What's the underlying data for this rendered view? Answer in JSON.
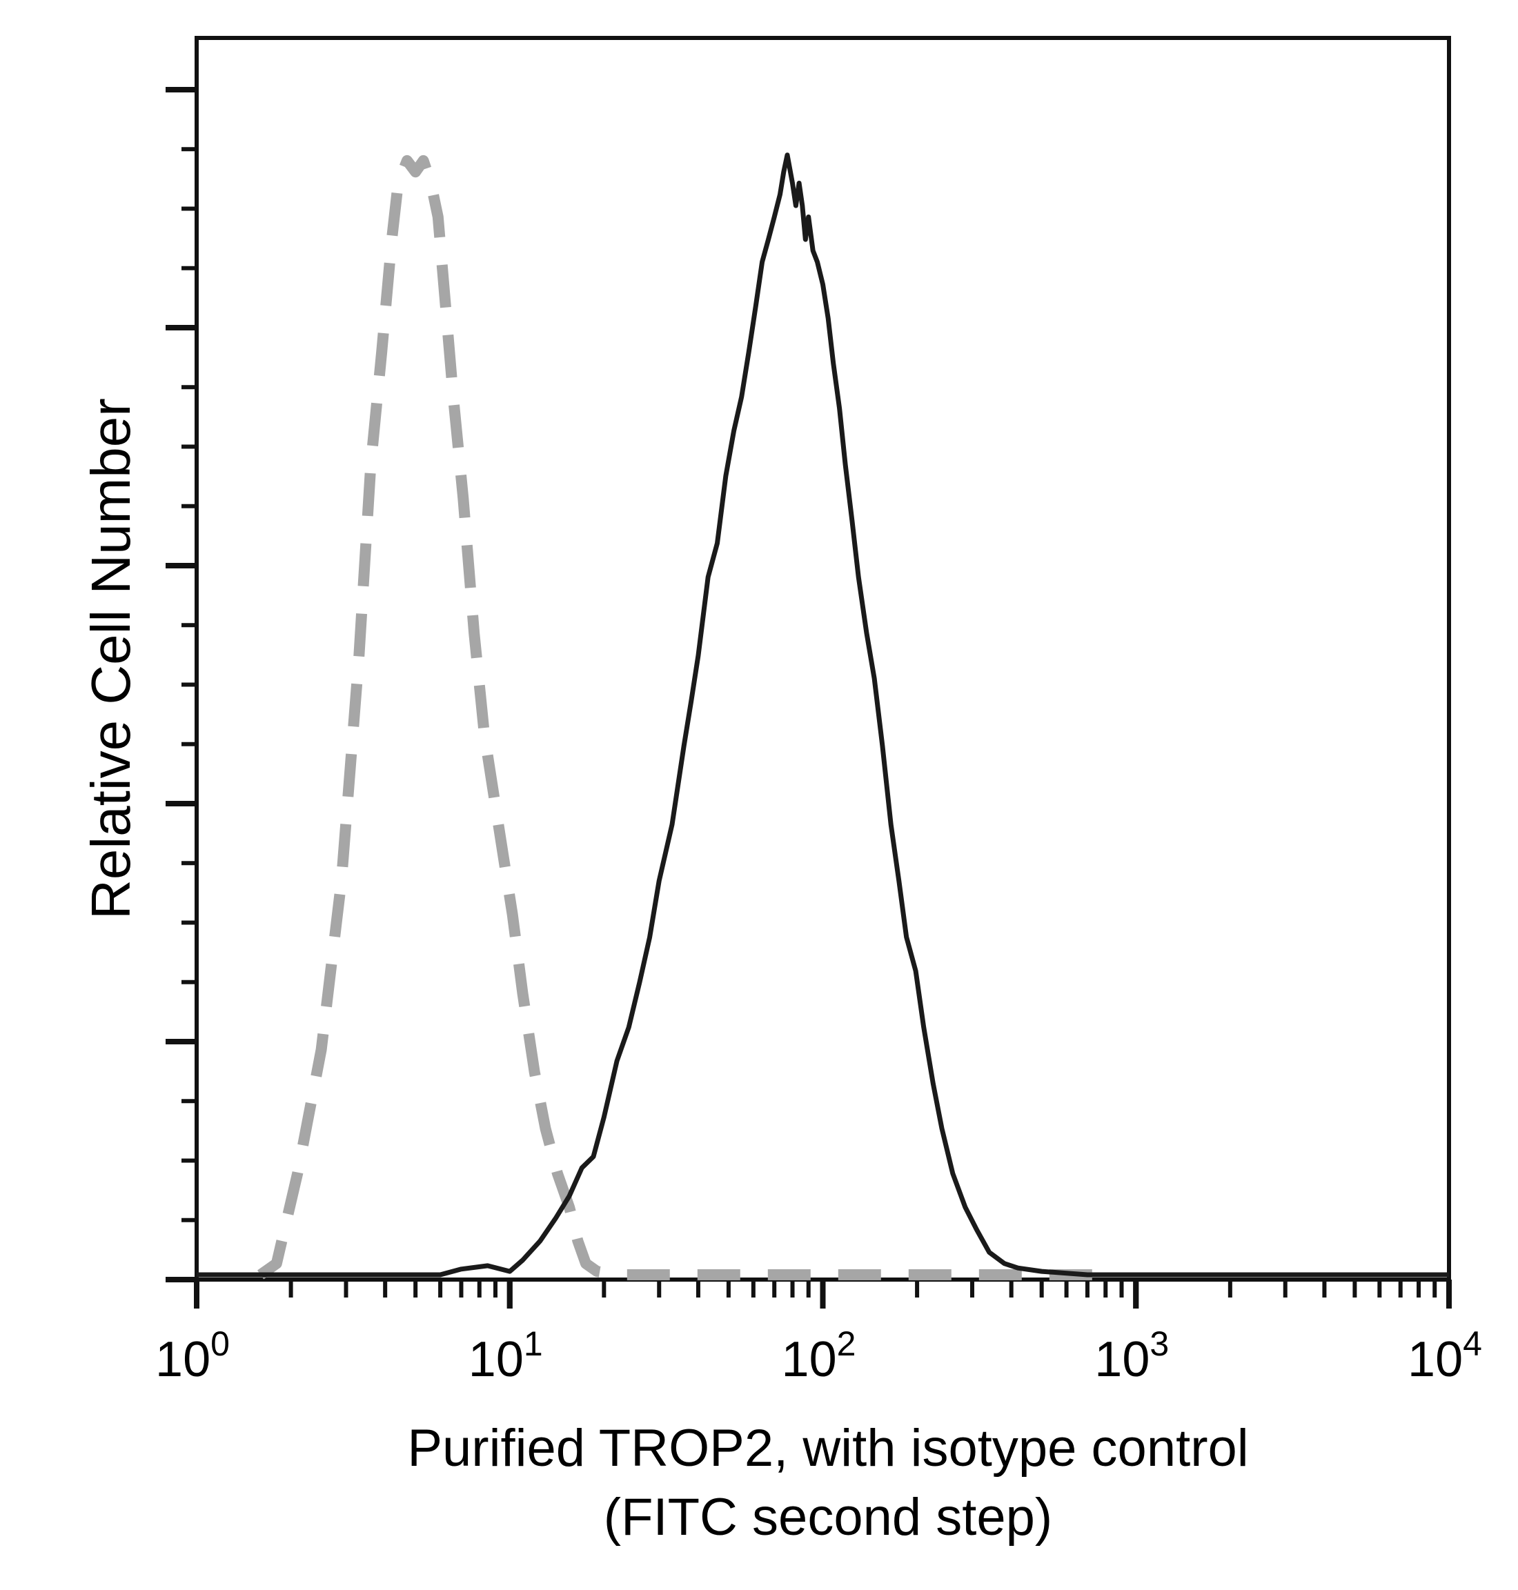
{
  "chart_data": {
    "type": "line",
    "title": "",
    "xlabel_line1": "Purified TROP2, with isotype control",
    "xlabel_line2": "(FITC second step)",
    "ylabel": "Relative Cell Number",
    "x_scale": "log",
    "xlim": [
      1,
      10000
    ],
    "ylim": [
      0,
      105
    ],
    "x_tick_labels": [
      {
        "base": "10",
        "exp": "0",
        "value": 1
      },
      {
        "base": "10",
        "exp": "1",
        "value": 10
      },
      {
        "base": "10",
        "exp": "2",
        "value": 100
      },
      {
        "base": "10",
        "exp": "3",
        "value": 1000
      },
      {
        "base": "10",
        "exp": "4",
        "value": 10000
      }
    ],
    "grid": false,
    "legend": "none",
    "series": [
      {
        "role": "isotype",
        "style": "dashed",
        "color": "#a6a6a6",
        "points": [
          [
            1.6,
            0
          ],
          [
            1.8,
            1
          ],
          [
            2.1,
            9
          ],
          [
            2.5,
            20
          ],
          [
            2.9,
            35
          ],
          [
            3.3,
            55
          ],
          [
            3.6,
            72
          ],
          [
            3.9,
            82
          ],
          [
            4.2,
            92
          ],
          [
            4.4,
            97
          ],
          [
            4.7,
            99
          ],
          [
            5.0,
            98
          ],
          [
            5.3,
            99
          ],
          [
            5.6,
            97
          ],
          [
            5.9,
            94
          ],
          [
            6.2,
            87
          ],
          [
            6.6,
            78
          ],
          [
            7.1,
            69
          ],
          [
            7.7,
            57
          ],
          [
            8.3,
            48
          ],
          [
            9.2,
            40
          ],
          [
            10.2,
            32
          ],
          [
            11.0,
            25
          ],
          [
            12.0,
            18
          ],
          [
            13.0,
            13
          ],
          [
            14.2,
            9
          ],
          [
            15.5,
            6
          ],
          [
            16.5,
            3
          ],
          [
            17.5,
            1
          ],
          [
            19,
            0.3
          ],
          [
            22,
            0
          ],
          [
            800,
            0
          ]
        ]
      },
      {
        "role": "TROP2",
        "style": "solid",
        "color": "#1a1a1a",
        "points": [
          [
            1,
            0
          ],
          [
            6.0,
            0
          ],
          [
            7.0,
            0.5
          ],
          [
            8.5,
            0.8
          ],
          [
            10,
            0.3
          ],
          [
            11,
            1.3
          ],
          [
            12.5,
            3
          ],
          [
            14,
            5
          ],
          [
            15.5,
            7
          ],
          [
            17,
            9.5
          ],
          [
            18.5,
            10.5
          ],
          [
            20,
            14
          ],
          [
            22,
            19
          ],
          [
            24,
            22
          ],
          [
            26,
            26
          ],
          [
            28,
            30
          ],
          [
            30,
            35
          ],
          [
            33,
            40
          ],
          [
            36,
            47
          ],
          [
            38,
            51
          ],
          [
            40,
            55
          ],
          [
            43,
            62
          ],
          [
            46,
            65
          ],
          [
            49,
            71
          ],
          [
            52,
            75
          ],
          [
            55,
            78
          ],
          [
            58,
            82
          ],
          [
            61,
            86
          ],
          [
            64,
            90
          ],
          [
            67,
            92
          ],
          [
            70,
            94
          ],
          [
            73,
            96
          ],
          [
            75,
            98
          ],
          [
            77,
            99.5
          ],
          [
            80,
            97
          ],
          [
            82,
            95
          ],
          [
            84,
            97
          ],
          [
            86,
            95
          ],
          [
            88,
            92
          ],
          [
            90,
            94
          ],
          [
            93,
            91
          ],
          [
            96,
            90
          ],
          [
            100,
            88
          ],
          [
            104,
            85
          ],
          [
            108,
            81
          ],
          [
            113,
            77
          ],
          [
            118,
            72
          ],
          [
            124,
            67
          ],
          [
            130,
            62
          ],
          [
            138,
            57
          ],
          [
            146,
            53
          ],
          [
            155,
            47
          ],
          [
            165,
            40
          ],
          [
            175,
            35
          ],
          [
            185,
            30
          ],
          [
            198,
            27
          ],
          [
            210,
            22
          ],
          [
            225,
            17
          ],
          [
            240,
            13
          ],
          [
            260,
            9
          ],
          [
            285,
            6
          ],
          [
            310,
            4
          ],
          [
            340,
            2
          ],
          [
            380,
            1
          ],
          [
            420,
            0.6
          ],
          [
            500,
            0.3
          ],
          [
            700,
            0
          ],
          [
            10000,
            0
          ]
        ]
      }
    ]
  }
}
